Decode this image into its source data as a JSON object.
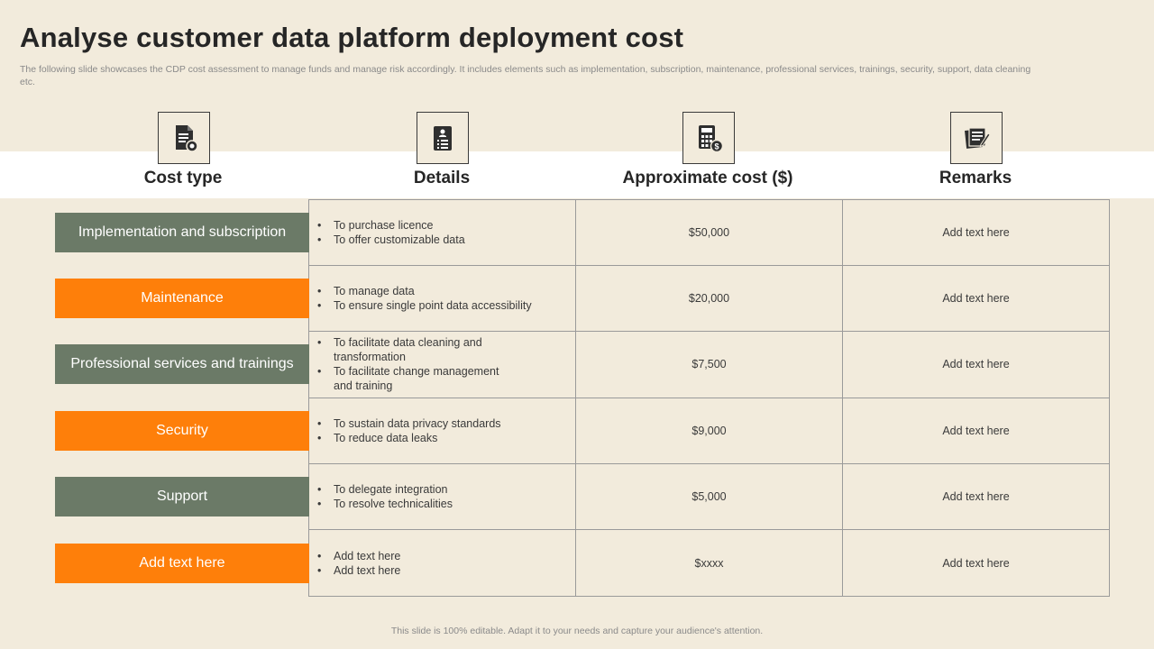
{
  "slide": {
    "title": "Analyse customer data platform deployment cost",
    "subtitle": "The following slide showcases the CDP cost assessment to manage funds and manage risk accordingly. It includes elements such as implementation, subscription, maintenance, professional services, trainings, security, support, data cleaning etc.",
    "footer": "This slide is 100% editable.  Adapt it to your needs and capture your audience's attention."
  },
  "columns": [
    {
      "label": "Cost type",
      "icon": "document-coin-icon"
    },
    {
      "label": "Details",
      "icon": "id-list-icon"
    },
    {
      "label": "Approximate cost ($)",
      "icon": "calculator-dollar-icon"
    },
    {
      "label": "Remarks",
      "icon": "notes-pen-icon"
    }
  ],
  "rows": [
    {
      "type": "Implementation  and subscription",
      "color": "#6b7a67",
      "details": [
        "To purchase  licence",
        "To offer  customizable data"
      ],
      "cost": "$50,000",
      "remark": "Add text here"
    },
    {
      "type": "Maintenance",
      "color": "#fe7f0a",
      "details": [
        "To manage  data",
        "To ensure  single point  data accessibility"
      ],
      "cost": "$20,000",
      "remark": "Add text here"
    },
    {
      "type": "Professional services and trainings",
      "color": "#6b7a67",
      "details": [
        "To facilitate data cleaning and transformation",
        "To facilitate change management and training"
      ],
      "cost": "$7,500",
      "remark": "Add text here"
    },
    {
      "type": "Security",
      "color": "#fe7f0a",
      "details": [
        "To sustain data privacy  standards",
        "To reduce data leaks"
      ],
      "cost": "$9,000",
      "remark": "Add text here"
    },
    {
      "type": "Support",
      "color": "#6b7a67",
      "details": [
        "To delegate  integration",
        "To resolve  technicalities"
      ],
      "cost": "$5,000",
      "remark": "Add text here"
    },
    {
      "type": "Add text here",
      "color": "#fe7f0a",
      "details": [
        "Add text here",
        "Add text here"
      ],
      "cost": "$xxxx",
      "remark": "Add text here"
    }
  ]
}
